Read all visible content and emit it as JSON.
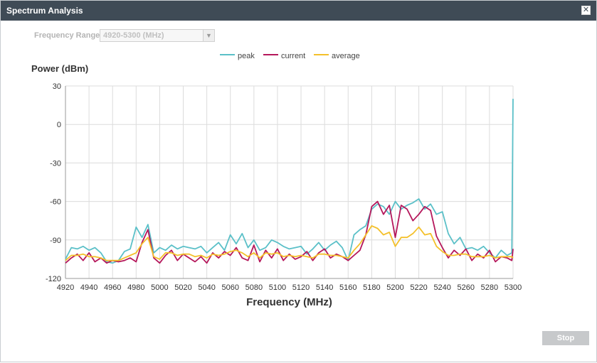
{
  "window": {
    "title": "Spectrum Analysis",
    "close_symbol": "✕"
  },
  "controls": {
    "frequency_range_label": "Frequency Range:",
    "frequency_range_value": "4920-5300 (MHz)",
    "stop_label": "Stop"
  },
  "chart_data": {
    "type": "line",
    "ylabel": "Power (dBm)",
    "xlabel": "Frequency (MHz)",
    "xlim": [
      4920,
      5300
    ],
    "ylim": [
      -120,
      30
    ],
    "x_ticks": [
      4920,
      4940,
      4960,
      4980,
      5000,
      5020,
      5040,
      5060,
      5080,
      5100,
      5120,
      5140,
      5160,
      5180,
      5200,
      5220,
      5240,
      5260,
      5280,
      5300
    ],
    "y_ticks": [
      30,
      0,
      -30,
      -60,
      -90,
      -120
    ],
    "grid": true,
    "legend_position": "top-center",
    "x": [
      4920,
      4925,
      4930,
      4935,
      4940,
      4945,
      4950,
      4955,
      4960,
      4965,
      4970,
      4975,
      4980,
      4985,
      4990,
      4995,
      5000,
      5005,
      5010,
      5015,
      5020,
      5025,
      5030,
      5035,
      5040,
      5045,
      5050,
      5055,
      5060,
      5065,
      5070,
      5075,
      5080,
      5085,
      5090,
      5095,
      5100,
      5105,
      5110,
      5115,
      5120,
      5125,
      5130,
      5135,
      5140,
      5145,
      5150,
      5155,
      5160,
      5165,
      5170,
      5175,
      5180,
      5185,
      5190,
      5195,
      5200,
      5205,
      5210,
      5215,
      5220,
      5225,
      5230,
      5235,
      5240,
      5245,
      5250,
      5255,
      5260,
      5265,
      5270,
      5275,
      5280,
      5285,
      5290,
      5295,
      5299,
      5300
    ],
    "series": [
      {
        "name": "peak",
        "color": "#5bc0c8",
        "values": [
          -105,
          -96,
          -97,
          -95,
          -98,
          -96,
          -100,
          -107,
          -108,
          -106,
          -99,
          -97,
          -80,
          -88,
          -78,
          -100,
          -96,
          -98,
          -94,
          -97,
          -95,
          -96,
          -97,
          -95,
          -100,
          -96,
          -92,
          -98,
          -86,
          -93,
          -85,
          -96,
          -90,
          -98,
          -96,
          -90,
          -92,
          -95,
          -97,
          -96,
          -95,
          -101,
          -97,
          -92,
          -98,
          -94,
          -91,
          -96,
          -106,
          -86,
          -82,
          -79,
          -66,
          -62,
          -64,
          -70,
          -60,
          -66,
          -63,
          -61,
          -58,
          -66,
          -62,
          -70,
          -68,
          -85,
          -93,
          -88,
          -97,
          -96,
          -98,
          -95,
          -100,
          -104,
          -98,
          -102,
          -100,
          20
        ]
      },
      {
        "name": "current",
        "color": "#b5175b",
        "values": [
          -108,
          -104,
          -101,
          -106,
          -100,
          -107,
          -104,
          -108,
          -106,
          -107,
          -106,
          -104,
          -107,
          -92,
          -82,
          -104,
          -108,
          -102,
          -98,
          -106,
          -101,
          -104,
          -107,
          -103,
          -108,
          -100,
          -104,
          -99,
          -102,
          -96,
          -104,
          -106,
          -94,
          -107,
          -98,
          -104,
          -97,
          -106,
          -101,
          -105,
          -103,
          -99,
          -106,
          -100,
          -97,
          -104,
          -101,
          -103,
          -106,
          -102,
          -98,
          -86,
          -64,
          -60,
          -70,
          -63,
          -88,
          -63,
          -66,
          -75,
          -70,
          -64,
          -67,
          -87,
          -96,
          -104,
          -98,
          -102,
          -97,
          -106,
          -101,
          -104,
          -98,
          -107,
          -103,
          -104,
          -106,
          -97
        ]
      },
      {
        "name": "average",
        "color": "#f4c02a",
        "values": [
          -106,
          -102,
          -102,
          -101,
          -103,
          -103,
          -104,
          -106,
          -106,
          -106,
          -104,
          -102,
          -100,
          -93,
          -88,
          -103,
          -105,
          -100,
          -100,
          -102,
          -101,
          -101,
          -103,
          -102,
          -104,
          -101,
          -102,
          -101,
          -99,
          -98,
          -100,
          -103,
          -100,
          -104,
          -100,
          -101,
          -100,
          -103,
          -102,
          -103,
          -102,
          -103,
          -104,
          -101,
          -101,
          -102,
          -102,
          -103,
          -104,
          -98,
          -93,
          -86,
          -79,
          -81,
          -86,
          -84,
          -95,
          -88,
          -88,
          -85,
          -80,
          -86,
          -85,
          -95,
          -99,
          -102,
          -102,
          -101,
          -101,
          -103,
          -103,
          -103,
          -102,
          -104,
          -103,
          -103,
          -103,
          -104
        ]
      }
    ]
  }
}
